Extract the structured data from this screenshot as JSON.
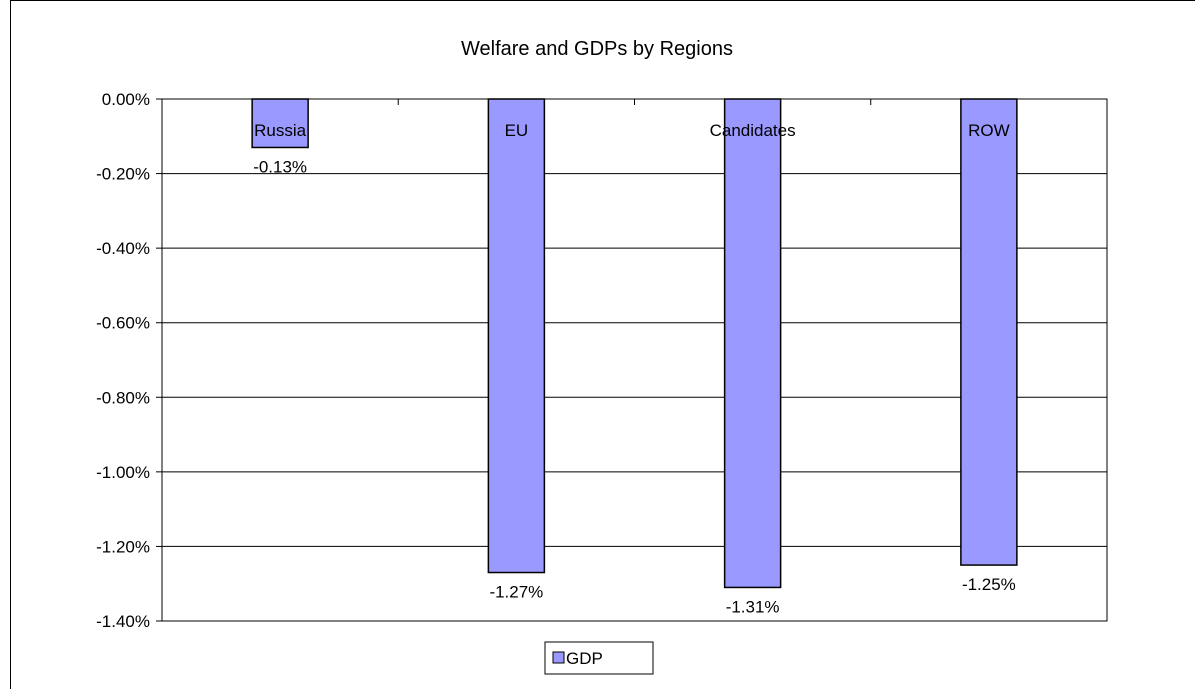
{
  "chart_data": {
    "type": "bar",
    "title": "Welfare and GDPs by Regions",
    "xlabel": "",
    "ylabel": "",
    "categories": [
      "Russia",
      "EU",
      "Candidates",
      "ROW"
    ],
    "series": [
      {
        "name": "GDP",
        "values": [
          -0.13,
          -1.27,
          -1.31,
          -1.25
        ],
        "labels": [
          "-0.13%",
          "-1.27%",
          "-1.31%",
          "-1.25%"
        ]
      }
    ],
    "ylim": [
      -1.4,
      0
    ],
    "yticks": [
      0,
      -0.2,
      -0.4,
      -0.6,
      -0.8,
      -1.0,
      -1.2,
      -1.4
    ],
    "ytick_labels": [
      "0.00%",
      "-0.20%",
      "-0.40%",
      "-0.60%",
      "-0.80%",
      "-1.00%",
      "-1.20%",
      "-1.40%"
    ],
    "grid": true,
    "legend": "bottom-center",
    "colors": {
      "bar": "#9999ff",
      "bar_edge": "#000000",
      "grid": "#000000"
    }
  }
}
